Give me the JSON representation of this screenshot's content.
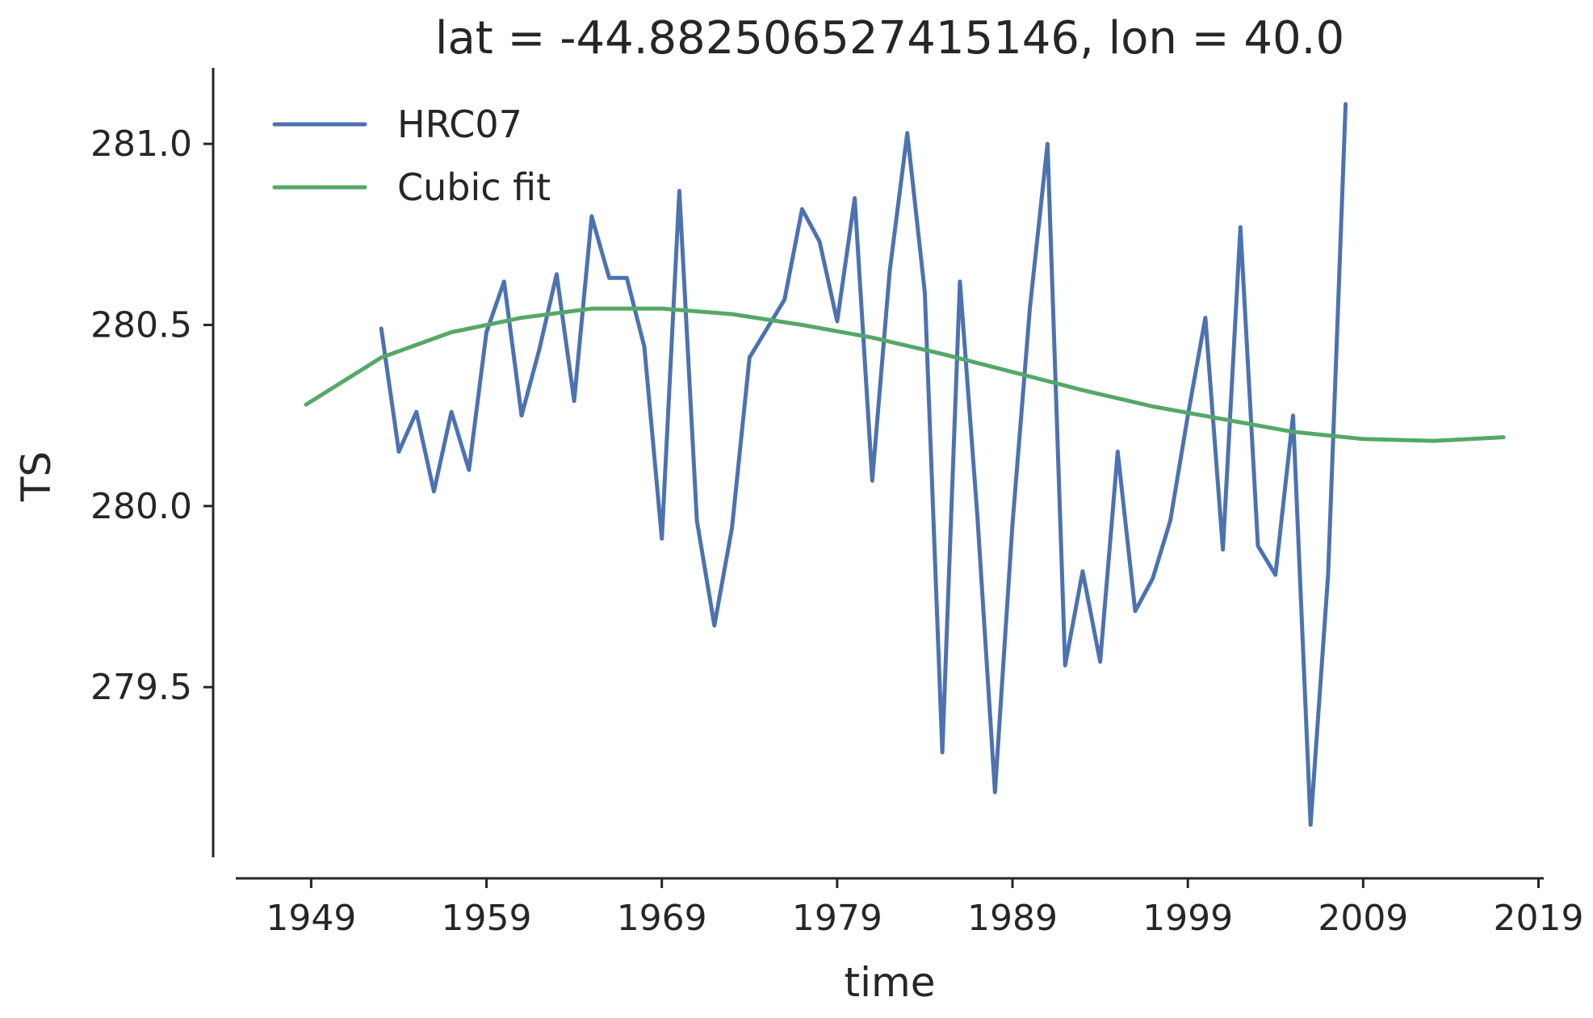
{
  "chart_data": {
    "type": "line",
    "title": "lat = -44.882506527415146, lon = 40.0",
    "xlabel": "time",
    "ylabel": "TS",
    "xlim": [
      1944.7,
      2019.3
    ],
    "ylim": [
      279.03,
      281.21
    ],
    "x_ticks": [
      1949,
      1959,
      1969,
      1979,
      1989,
      1999,
      2009,
      2019
    ],
    "y_ticks": [
      279.5,
      280.0,
      280.5,
      281.0
    ],
    "y_tick_labels": [
      "279.5",
      "280.0",
      "280.5",
      "281.0"
    ],
    "grid": false,
    "legend_position": "top-left",
    "series": [
      {
        "name": "HRC07",
        "color": "#4c72b0",
        "x": [
          1953,
          1954,
          1955,
          1956,
          1957,
          1958,
          1959,
          1960,
          1961,
          1962,
          1963,
          1964,
          1965,
          1966,
          1967,
          1968,
          1969,
          1970,
          1971,
          1972,
          1973,
          1974,
          1975,
          1976,
          1977,
          1978,
          1979,
          1980,
          1981,
          1982,
          1983,
          1984,
          1985,
          1986,
          1987,
          1988,
          1989,
          1990,
          1991,
          1992,
          1993,
          1994,
          1995,
          1996,
          1997,
          1998,
          1999,
          2000,
          2001,
          2002,
          2003,
          2004,
          2005,
          2006,
          2007,
          2008
        ],
        "y": [
          280.49,
          280.15,
          280.26,
          280.04,
          280.26,
          280.1,
          280.48,
          280.62,
          280.25,
          280.43,
          280.64,
          280.29,
          280.8,
          280.63,
          280.63,
          280.44,
          279.91,
          280.87,
          279.96,
          279.67,
          279.94,
          280.41,
          280.49,
          280.57,
          280.82,
          280.73,
          280.51,
          280.85,
          280.07,
          280.65,
          281.03,
          280.59,
          279.32,
          280.62,
          279.97,
          279.21,
          279.95,
          280.55,
          281.0,
          279.56,
          279.82,
          279.57,
          280.15,
          279.71,
          279.8,
          279.96,
          280.25,
          280.52,
          279.88,
          280.77,
          279.89,
          279.81,
          280.25,
          279.12,
          279.81,
          281.11
        ]
      },
      {
        "name": "Cubic fit",
        "color": "#55a868",
        "x": [
          1948.7,
          1953,
          1957,
          1961,
          1965,
          1969,
          1973,
          1977,
          1981,
          1985,
          1989,
          1993,
          1997,
          2001,
          2005,
          2009,
          2013,
          2017
        ],
        "y": [
          280.28,
          280.41,
          280.48,
          280.52,
          280.545,
          280.545,
          280.53,
          280.5,
          280.465,
          280.42,
          280.37,
          280.32,
          280.275,
          280.24,
          280.205,
          280.185,
          280.18,
          280.19
        ]
      }
    ]
  }
}
